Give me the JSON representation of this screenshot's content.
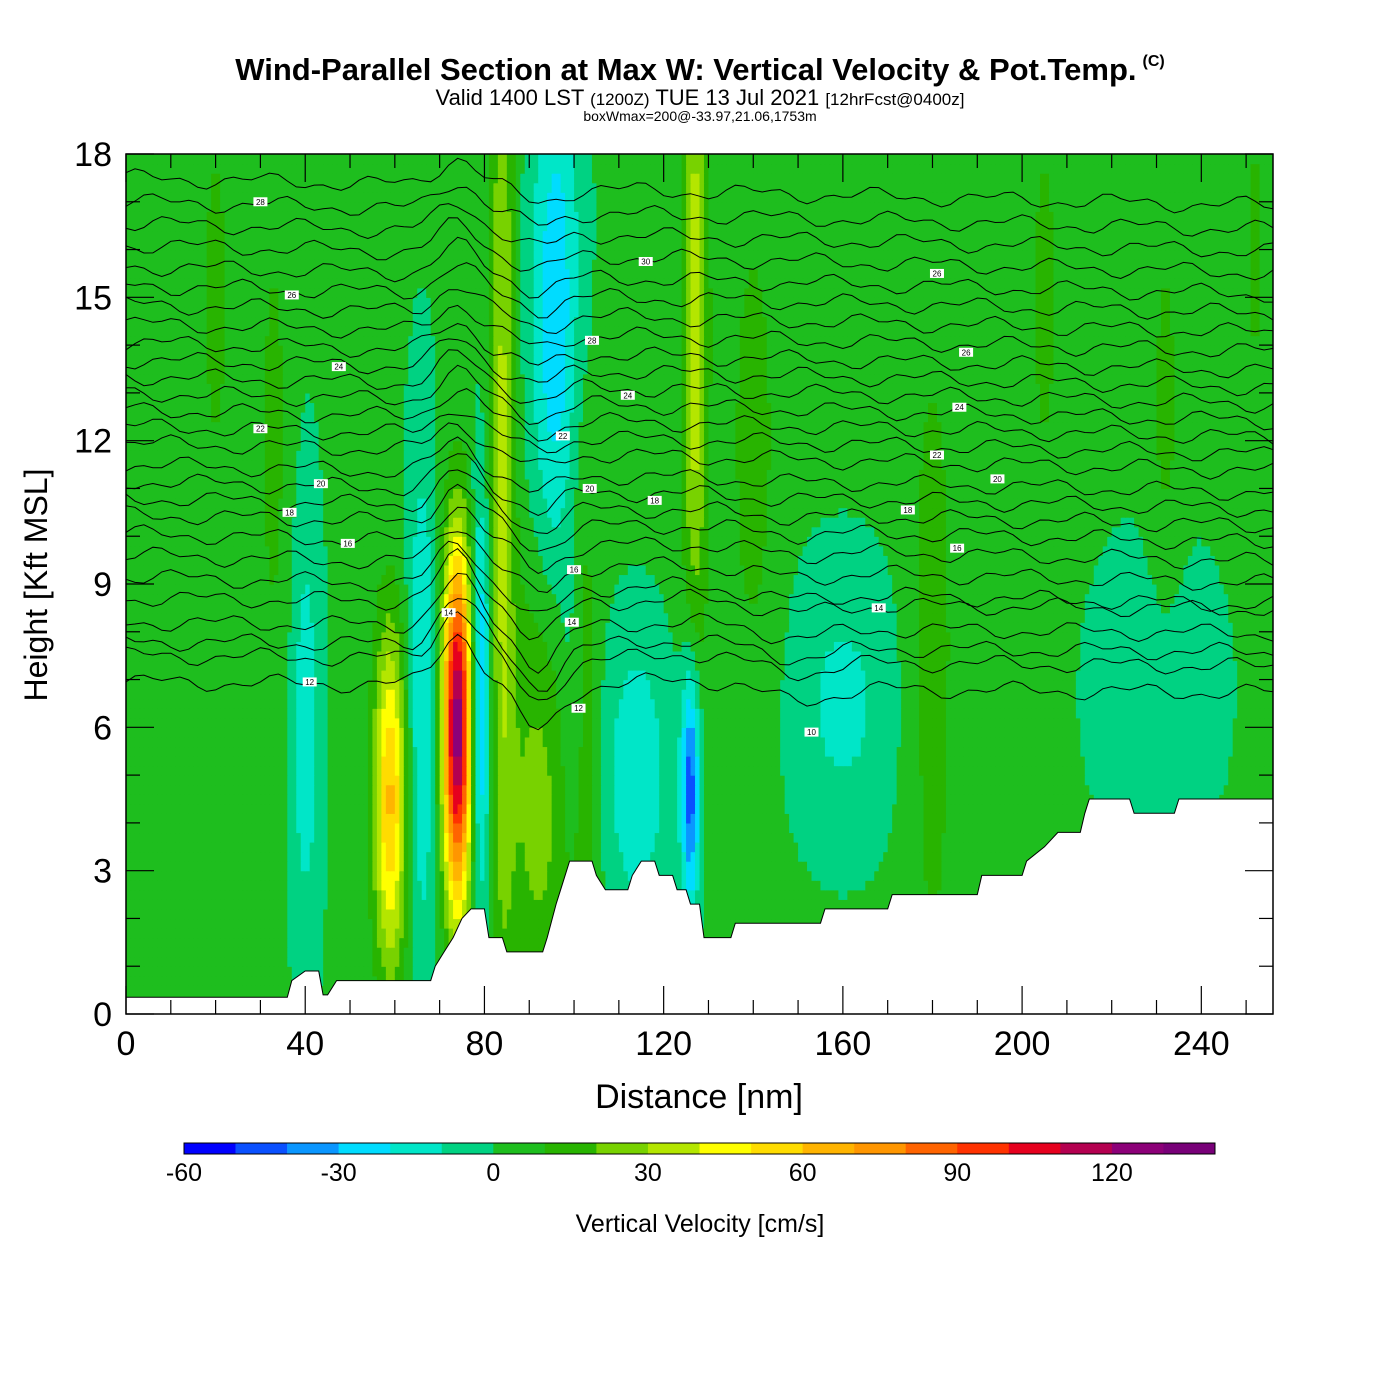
{
  "header": {
    "title": "Wind-Parallel Section at Max W: Vertical Velocity & Pot.Temp.",
    "copyright": "(C)",
    "valid_prefix": "Valid 1400 LST",
    "valid_utc": "(1200Z)",
    "valid_date": "TUE 13 Jul 2021",
    "forecast": "[12hrFcst@0400z]",
    "box_info": "boxWmax=200@-33.97,21.06,1753m"
  },
  "chart_data": {
    "type": "heatmap",
    "xlabel": "Distance [nm]",
    "ylabel": "Height [Kft MSL]",
    "xlim": [
      0,
      256
    ],
    "ylim": [
      0,
      18
    ],
    "x_ticks": [
      0,
      40,
      80,
      120,
      160,
      200,
      240
    ],
    "y_ticks": [
      0,
      3,
      6,
      9,
      12,
      15,
      18
    ],
    "colorbar": {
      "label": "Vertical Velocity [cm/s]",
      "min": -60,
      "max": 140,
      "step": 10,
      "ticks": [
        -60,
        -30,
        0,
        30,
        60,
        90,
        120
      ],
      "colors": [
        "#0000ff",
        "#0a50ff",
        "#0a96ff",
        "#00dcff",
        "#00e6c8",
        "#00d282",
        "#1ebe1e",
        "#28b400",
        "#78d200",
        "#b4e600",
        "#ffff00",
        "#ffdc00",
        "#ffb400",
        "#ff9600",
        "#ff6400",
        "#ff3200",
        "#e6001e",
        "#b40050",
        "#8c0078",
        "#780078"
      ]
    },
    "background_w": 2,
    "w_features": [
      {
        "x": 59,
        "y": 4.5,
        "sx": 2.6,
        "sy": 2.5,
        "w": 60
      },
      {
        "x": 74,
        "y": 6.0,
        "sx": 2.3,
        "sy": 2.6,
        "w": 125
      },
      {
        "x": 84,
        "y": 12.0,
        "sx": 2.0,
        "sy": 8.0,
        "w": 30
      },
      {
        "x": 92,
        "y": 4.5,
        "sx": 5.0,
        "sy": 3.5,
        "w": 22
      },
      {
        "x": 101,
        "y": 6.0,
        "sx": 2.5,
        "sy": 4.5,
        "w": 28
      },
      {
        "x": 127,
        "y": 14.5,
        "sx": 2.0,
        "sy": 5.0,
        "w": 35
      },
      {
        "x": 40,
        "y": 6.0,
        "sx": 2.5,
        "sy": 3.5,
        "w": -18
      },
      {
        "x": 66,
        "y": 6.5,
        "sx": 2.5,
        "sy": 4.0,
        "w": -22
      },
      {
        "x": 79,
        "y": 6.5,
        "sx": 1.6,
        "sy": 3.0,
        "w": -40
      },
      {
        "x": 96,
        "y": 14.5,
        "sx": 4.0,
        "sy": 4.0,
        "w": -30
      },
      {
        "x": 100,
        "y": 6.0,
        "sx": 2.0,
        "sy": 3.0,
        "w": -28
      },
      {
        "x": 114,
        "y": 5.0,
        "sx": 5.0,
        "sy": 2.0,
        "w": -22
      },
      {
        "x": 126,
        "y": 4.8,
        "sx": 1.5,
        "sy": 1.8,
        "w": -50
      },
      {
        "x": 160,
        "y": 6.5,
        "sx": 8.0,
        "sy": 2.0,
        "w": -15
      },
      {
        "x": 230,
        "y": 6.8,
        "sx": 9.0,
        "sy": 2.0,
        "w": -14
      },
      {
        "x": 20,
        "y": 15.0,
        "sx": 3.0,
        "sy": 4.0,
        "w": 10
      },
      {
        "x": 33,
        "y": 12.0,
        "sx": 3.0,
        "sy": 5.0,
        "w": 10
      },
      {
        "x": 140,
        "y": 12.0,
        "sx": 4.0,
        "sy": 4.0,
        "w": 12
      },
      {
        "x": 180,
        "y": 7.5,
        "sx": 4.0,
        "sy": 6.0,
        "w": 12
      },
      {
        "x": 205,
        "y": 15.0,
        "sx": 3.0,
        "sy": 4.0,
        "w": 10
      },
      {
        "x": 232,
        "y": 12.0,
        "sx": 3.0,
        "sy": 5.0,
        "w": 10
      },
      {
        "x": 252,
        "y": 16.0,
        "sx": 2.0,
        "sy": 3.0,
        "w": 10
      }
    ],
    "terrain": [
      [
        0,
        0.35
      ],
      [
        36,
        0.35
      ],
      [
        37,
        0.7
      ],
      [
        40,
        0.9
      ],
      [
        43,
        0.9
      ],
      [
        44,
        0.4
      ],
      [
        45,
        0.4
      ],
      [
        47,
        0.7
      ],
      [
        68,
        0.7
      ],
      [
        69,
        1.0
      ],
      [
        71,
        1.3
      ],
      [
        73,
        1.6
      ],
      [
        75,
        2.0
      ],
      [
        77,
        2.2
      ],
      [
        80,
        2.2
      ],
      [
        81,
        1.6
      ],
      [
        84,
        1.6
      ],
      [
        85,
        1.3
      ],
      [
        93,
        1.3
      ],
      [
        94,
        1.6
      ],
      [
        96,
        2.3
      ],
      [
        97,
        2.6
      ],
      [
        99,
        3.2
      ],
      [
        104,
        3.2
      ],
      [
        105,
        2.9
      ],
      [
        107,
        2.6
      ],
      [
        112,
        2.6
      ],
      [
        113,
        2.9
      ],
      [
        115,
        3.2
      ],
      [
        118,
        3.2
      ],
      [
        119,
        2.9
      ],
      [
        122,
        2.9
      ],
      [
        123,
        2.6
      ],
      [
        125,
        2.6
      ],
      [
        126,
        2.3
      ],
      [
        128,
        2.3
      ],
      [
        129,
        1.6
      ],
      [
        135,
        1.6
      ],
      [
        136,
        1.9
      ],
      [
        155,
        1.9
      ],
      [
        156,
        2.2
      ],
      [
        170,
        2.2
      ],
      [
        171,
        2.5
      ],
      [
        190,
        2.5
      ],
      [
        191,
        2.9
      ],
      [
        200,
        2.9
      ],
      [
        201,
        3.2
      ],
      [
        205,
        3.5
      ],
      [
        208,
        3.8
      ],
      [
        213,
        3.8
      ],
      [
        214,
        4.2
      ],
      [
        215,
        4.5
      ],
      [
        224,
        4.5
      ],
      [
        225,
        4.2
      ],
      [
        234,
        4.2
      ],
      [
        235,
        4.5
      ],
      [
        256,
        4.5
      ]
    ],
    "theta_levels": [
      [
        "12",
        6.95
      ],
      [
        "14",
        7.5
      ],
      [
        "14",
        7.8
      ],
      [
        "12",
        8.2
      ],
      [
        "16",
        8.7
      ],
      [
        "18",
        9.15
      ],
      [
        "16",
        9.6
      ],
      [
        "18",
        10.05
      ],
      [
        "18",
        10.45
      ],
      [
        "20",
        10.8
      ],
      [
        "22",
        11.15
      ],
      [
        "22",
        11.5
      ],
      [
        "20",
        11.95
      ],
      [
        "22",
        12.3
      ],
      [
        "24",
        12.65
      ],
      [
        "24",
        13.0
      ],
      [
        "24",
        13.35
      ],
      [
        "26",
        13.7
      ],
      [
        "26",
        14.05
      ],
      [
        "28",
        14.45
      ],
      [
        "26",
        14.85
      ],
      [
        "26",
        15.25
      ],
      [
        "30",
        15.65
      ],
      [
        "28",
        16.1
      ],
      [
        "30",
        16.55
      ],
      [
        "28",
        17.0
      ],
      [
        "32",
        17.5
      ]
    ],
    "theta_labels": [
      {
        "text": "28",
        "x": 30,
        "y": 17.0
      },
      {
        "text": "26",
        "x": 37,
        "y": 15.05
      },
      {
        "text": "24",
        "x": 47.5,
        "y": 13.55
      },
      {
        "text": "22",
        "x": 30,
        "y": 12.25
      },
      {
        "text": "20",
        "x": 43.5,
        "y": 11.1
      },
      {
        "text": "18",
        "x": 36.5,
        "y": 10.5
      },
      {
        "text": "16",
        "x": 49.5,
        "y": 9.85
      },
      {
        "text": "12",
        "x": 41,
        "y": 6.95
      },
      {
        "text": "14",
        "x": 72,
        "y": 8.4
      },
      {
        "text": "22",
        "x": 97.5,
        "y": 12.1
      },
      {
        "text": "20",
        "x": 103.5,
        "y": 11.0
      },
      {
        "text": "18",
        "x": 118,
        "y": 10.75
      },
      {
        "text": "16",
        "x": 100,
        "y": 9.3
      },
      {
        "text": "14",
        "x": 99.5,
        "y": 8.2
      },
      {
        "text": "12",
        "x": 101,
        "y": 6.4
      },
      {
        "text": "24",
        "x": 112,
        "y": 12.95
      },
      {
        "text": "28",
        "x": 104,
        "y": 14.1
      },
      {
        "text": "30",
        "x": 116,
        "y": 15.75
      },
      {
        "text": "26",
        "x": 181,
        "y": 15.5
      },
      {
        "text": "26",
        "x": 187.5,
        "y": 13.85
      },
      {
        "text": "24",
        "x": 186,
        "y": 12.7
      },
      {
        "text": "22",
        "x": 181,
        "y": 11.7
      },
      {
        "text": "20",
        "x": 194.5,
        "y": 11.2
      },
      {
        "text": "18",
        "x": 174.5,
        "y": 10.55
      },
      {
        "text": "16",
        "x": 185.5,
        "y": 9.75
      },
      {
        "text": "14",
        "x": 168,
        "y": 8.5
      },
      {
        "text": "10",
        "x": 153,
        "y": 5.9
      }
    ]
  }
}
